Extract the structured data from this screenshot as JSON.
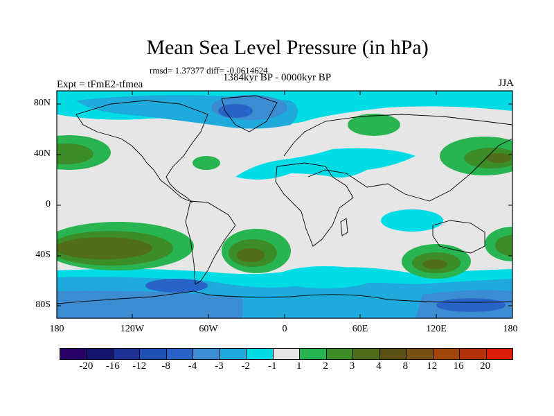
{
  "title": "Mean Sea Level Pressure (in hPa)",
  "stats": "rmsd= 1.37377 diff= -0.0614624",
  "period": "1384kyr BP - 0000kyr BP",
  "experiment": "Expt = tFmE2-tfmea",
  "season": "JJA",
  "lat_labels": [
    "80N",
    "40N",
    "0",
    "40S",
    "80S"
  ],
  "lon_labels": [
    "180",
    "120W",
    "60W",
    "0",
    "60E",
    "120E",
    "180"
  ],
  "colorbar": {
    "colors": [
      "#2a0068",
      "#14146e",
      "#1e3296",
      "#1e50b4",
      "#2864c8",
      "#3c8cd2",
      "#1eaadc",
      "#00dce6",
      "#e6e6e6",
      "#28b450",
      "#3c8c28",
      "#506e1e",
      "#5a5014",
      "#785014",
      "#a0460a",
      "#b4320a",
      "#dc1e0a"
    ],
    "labels": [
      "-20",
      "-16",
      "-12",
      "-8",
      "-4",
      "-3",
      "-2",
      "-1",
      "1",
      "2",
      "3",
      "4",
      "8",
      "12",
      "16",
      "20"
    ]
  }
}
